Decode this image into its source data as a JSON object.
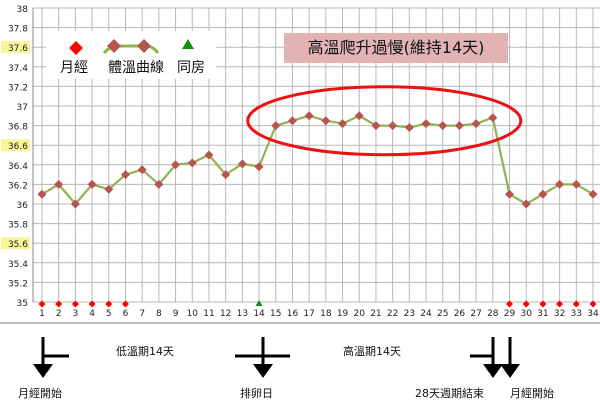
{
  "chart_data": {
    "type": "line",
    "title": "高溫爬升過慢(維持14天)",
    "xlabel": "",
    "ylabel": "",
    "x": [
      1,
      2,
      3,
      4,
      5,
      6,
      7,
      8,
      9,
      10,
      11,
      12,
      13,
      14,
      15,
      16,
      17,
      18,
      19,
      20,
      21,
      22,
      23,
      24,
      25,
      26,
      27,
      28,
      29,
      30,
      31,
      32,
      33,
      34
    ],
    "ylim": [
      35,
      38
    ],
    "yticks": [
      "35",
      "35.2",
      "35.4",
      "35.6",
      "35.8",
      "36",
      "36.2",
      "36.4",
      "36.6",
      "36.8",
      "37",
      "37.2",
      "37.4",
      "37.6",
      "37.8",
      "38"
    ],
    "highlighted_yticks": [
      "35.6",
      "36.6",
      "37.6"
    ],
    "grid": true,
    "legend_placement": "top-left",
    "series": [
      {
        "name": "體溫曲線",
        "color": "#8fb350",
        "marker_color": "#b85450",
        "values": [
          36.1,
          36.2,
          36.0,
          36.2,
          36.15,
          36.3,
          36.35,
          36.2,
          36.4,
          36.42,
          36.5,
          36.3,
          36.41,
          36.38,
          36.8,
          36.85,
          36.9,
          36.85,
          36.82,
          36.9,
          36.8,
          36.8,
          36.78,
          36.82,
          36.8,
          36.8,
          36.82,
          36.88,
          36.1,
          36.0,
          36.1,
          36.2,
          36.2,
          36.1
        ]
      },
      {
        "name": "月經",
        "color": "#ff0000",
        "marker": "diamond",
        "days": [
          1,
          2,
          3,
          4,
          5,
          6,
          29,
          30,
          31,
          32,
          33,
          34
        ]
      },
      {
        "name": "同房",
        "color": "#109010",
        "marker": "triangle",
        "days": [
          14
        ]
      }
    ],
    "annotation_ellipse_days": [
      15,
      28
    ]
  },
  "annotations": {
    "phase_labels": [
      {
        "text": "低溫期14天"
      },
      {
        "text": "高溫期14天"
      }
    ],
    "markers": [
      {
        "text": "月經開始"
      },
      {
        "text": "排卵日"
      },
      {
        "text": "28天週期結束"
      },
      {
        "text": "月經開始"
      }
    ]
  }
}
